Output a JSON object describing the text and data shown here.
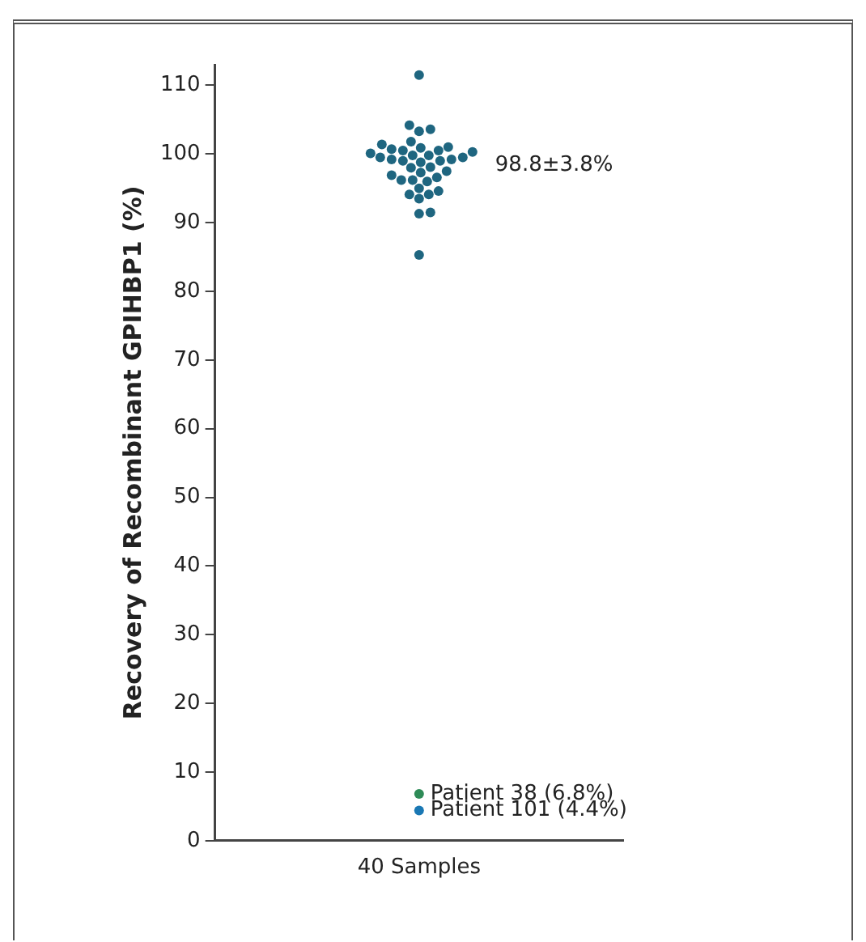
{
  "chart_data": {
    "type": "scatter",
    "ylabel": "Recovery of Recombinant GPIHBP1 (%)",
    "categories": [
      "40 Samples"
    ],
    "ylim": [
      0,
      113
    ],
    "yticks": [
      0,
      10,
      20,
      30,
      40,
      50,
      60,
      70,
      80,
      90,
      100,
      110
    ],
    "grid": false,
    "legend": false,
    "marker": "circle",
    "series": [
      {
        "color": "#1f6680",
        "x": [
          "40 Samples",
          "40 Samples",
          "40 Samples",
          "40 Samples",
          "40 Samples",
          "40 Samples",
          "40 Samples",
          "40 Samples",
          "40 Samples",
          "40 Samples",
          "40 Samples",
          "40 Samples",
          "40 Samples",
          "40 Samples",
          "40 Samples",
          "40 Samples",
          "40 Samples",
          "40 Samples",
          "40 Samples",
          "40 Samples",
          "40 Samples",
          "40 Samples",
          "40 Samples",
          "40 Samples",
          "40 Samples",
          "40 Samples",
          "40 Samples",
          "40 Samples",
          "40 Samples",
          "40 Samples",
          "40 Samples",
          "40 Samples",
          "40 Samples",
          "40 Samples",
          "40 Samples",
          "40 Samples",
          "40 Samples",
          "40 Samples",
          "40 Samples"
        ],
        "values": [
          111.5,
          103.6,
          103.3,
          104.2,
          101.8,
          101.0,
          100.7,
          100.9,
          101.4,
          100.5,
          100.1,
          99.8,
          99.5,
          99.2,
          99.0,
          98.8,
          99.0,
          99.2,
          99.5,
          99.8,
          100.3,
          100.5,
          98.1,
          97.5,
          96.9,
          96.2,
          96.0,
          96.2,
          96.6,
          97.3,
          98.0,
          94.6,
          94.1,
          93.5,
          94.1,
          95.0,
          91.3,
          91.5,
          85.3
        ]
      },
      {
        "name": "Patient 38 (6.8%)",
        "color": "#2e8b57",
        "x": [
          "40 Samples"
        ],
        "values": [
          6.8
        ]
      },
      {
        "name": "Patient 101 (4.4%)",
        "color": "#1a78b4",
        "x": [
          "40 Samples"
        ],
        "values": [
          4.4
        ]
      }
    ],
    "annotations": [
      "98.8±3.8%"
    ]
  }
}
